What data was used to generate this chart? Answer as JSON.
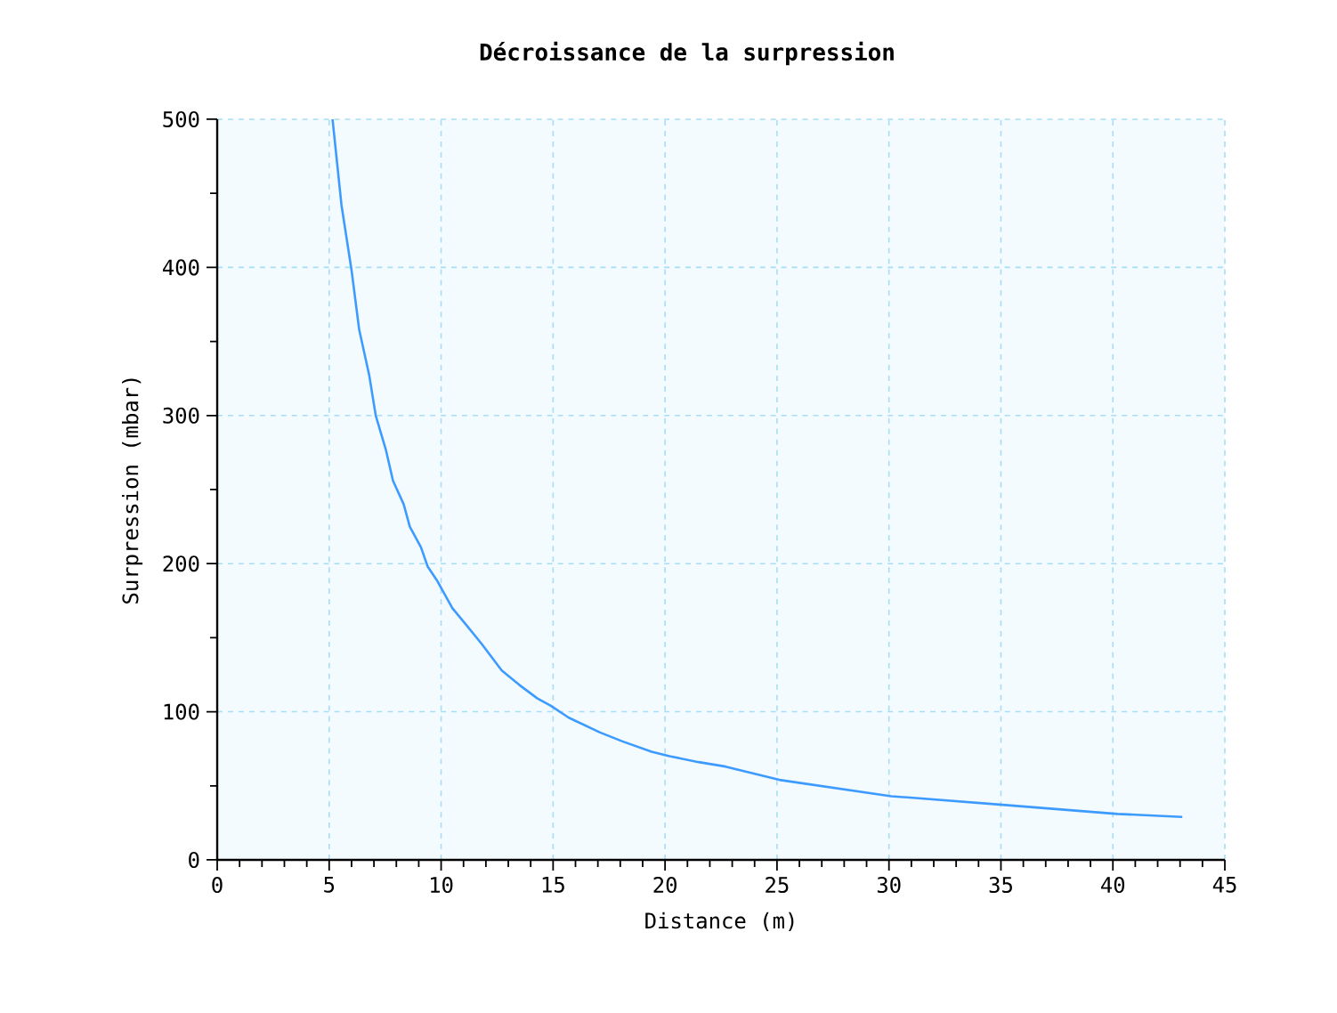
{
  "chart_data": {
    "type": "line",
    "title": "Décroissance de la surpression",
    "xlabel": "Distance (m)",
    "ylabel": "Surpression (mbar)",
    "x": [
      5.15,
      5.55,
      6.0,
      6.34,
      6.79,
      7.08,
      7.53,
      7.85,
      8.33,
      8.6,
      9.1,
      9.4,
      9.8,
      10.5,
      11.1,
      11.8,
      12.7,
      13.5,
      14.3,
      14.9,
      15.7,
      17.1,
      18.1,
      19.4,
      20.2,
      21.5,
      22.7,
      25.1,
      30.1,
      35.2,
      40.2,
      43.1
    ],
    "values": [
      500,
      442,
      398,
      358,
      327,
      300,
      277,
      256,
      240,
      225,
      211,
      198,
      189,
      170,
      159,
      146,
      128,
      118,
      109,
      104,
      96,
      86,
      80,
      73,
      70,
      66,
      63,
      54,
      43,
      37,
      31,
      29
    ],
    "color": "#3d9bff",
    "xlim": [
      0,
      45
    ],
    "ylim": [
      0,
      500
    ],
    "xticks": [
      0,
      5,
      10,
      15,
      20,
      25,
      30,
      35,
      40,
      45
    ],
    "yticks": [
      0,
      100,
      200,
      300,
      400,
      500
    ],
    "grid": true
  }
}
